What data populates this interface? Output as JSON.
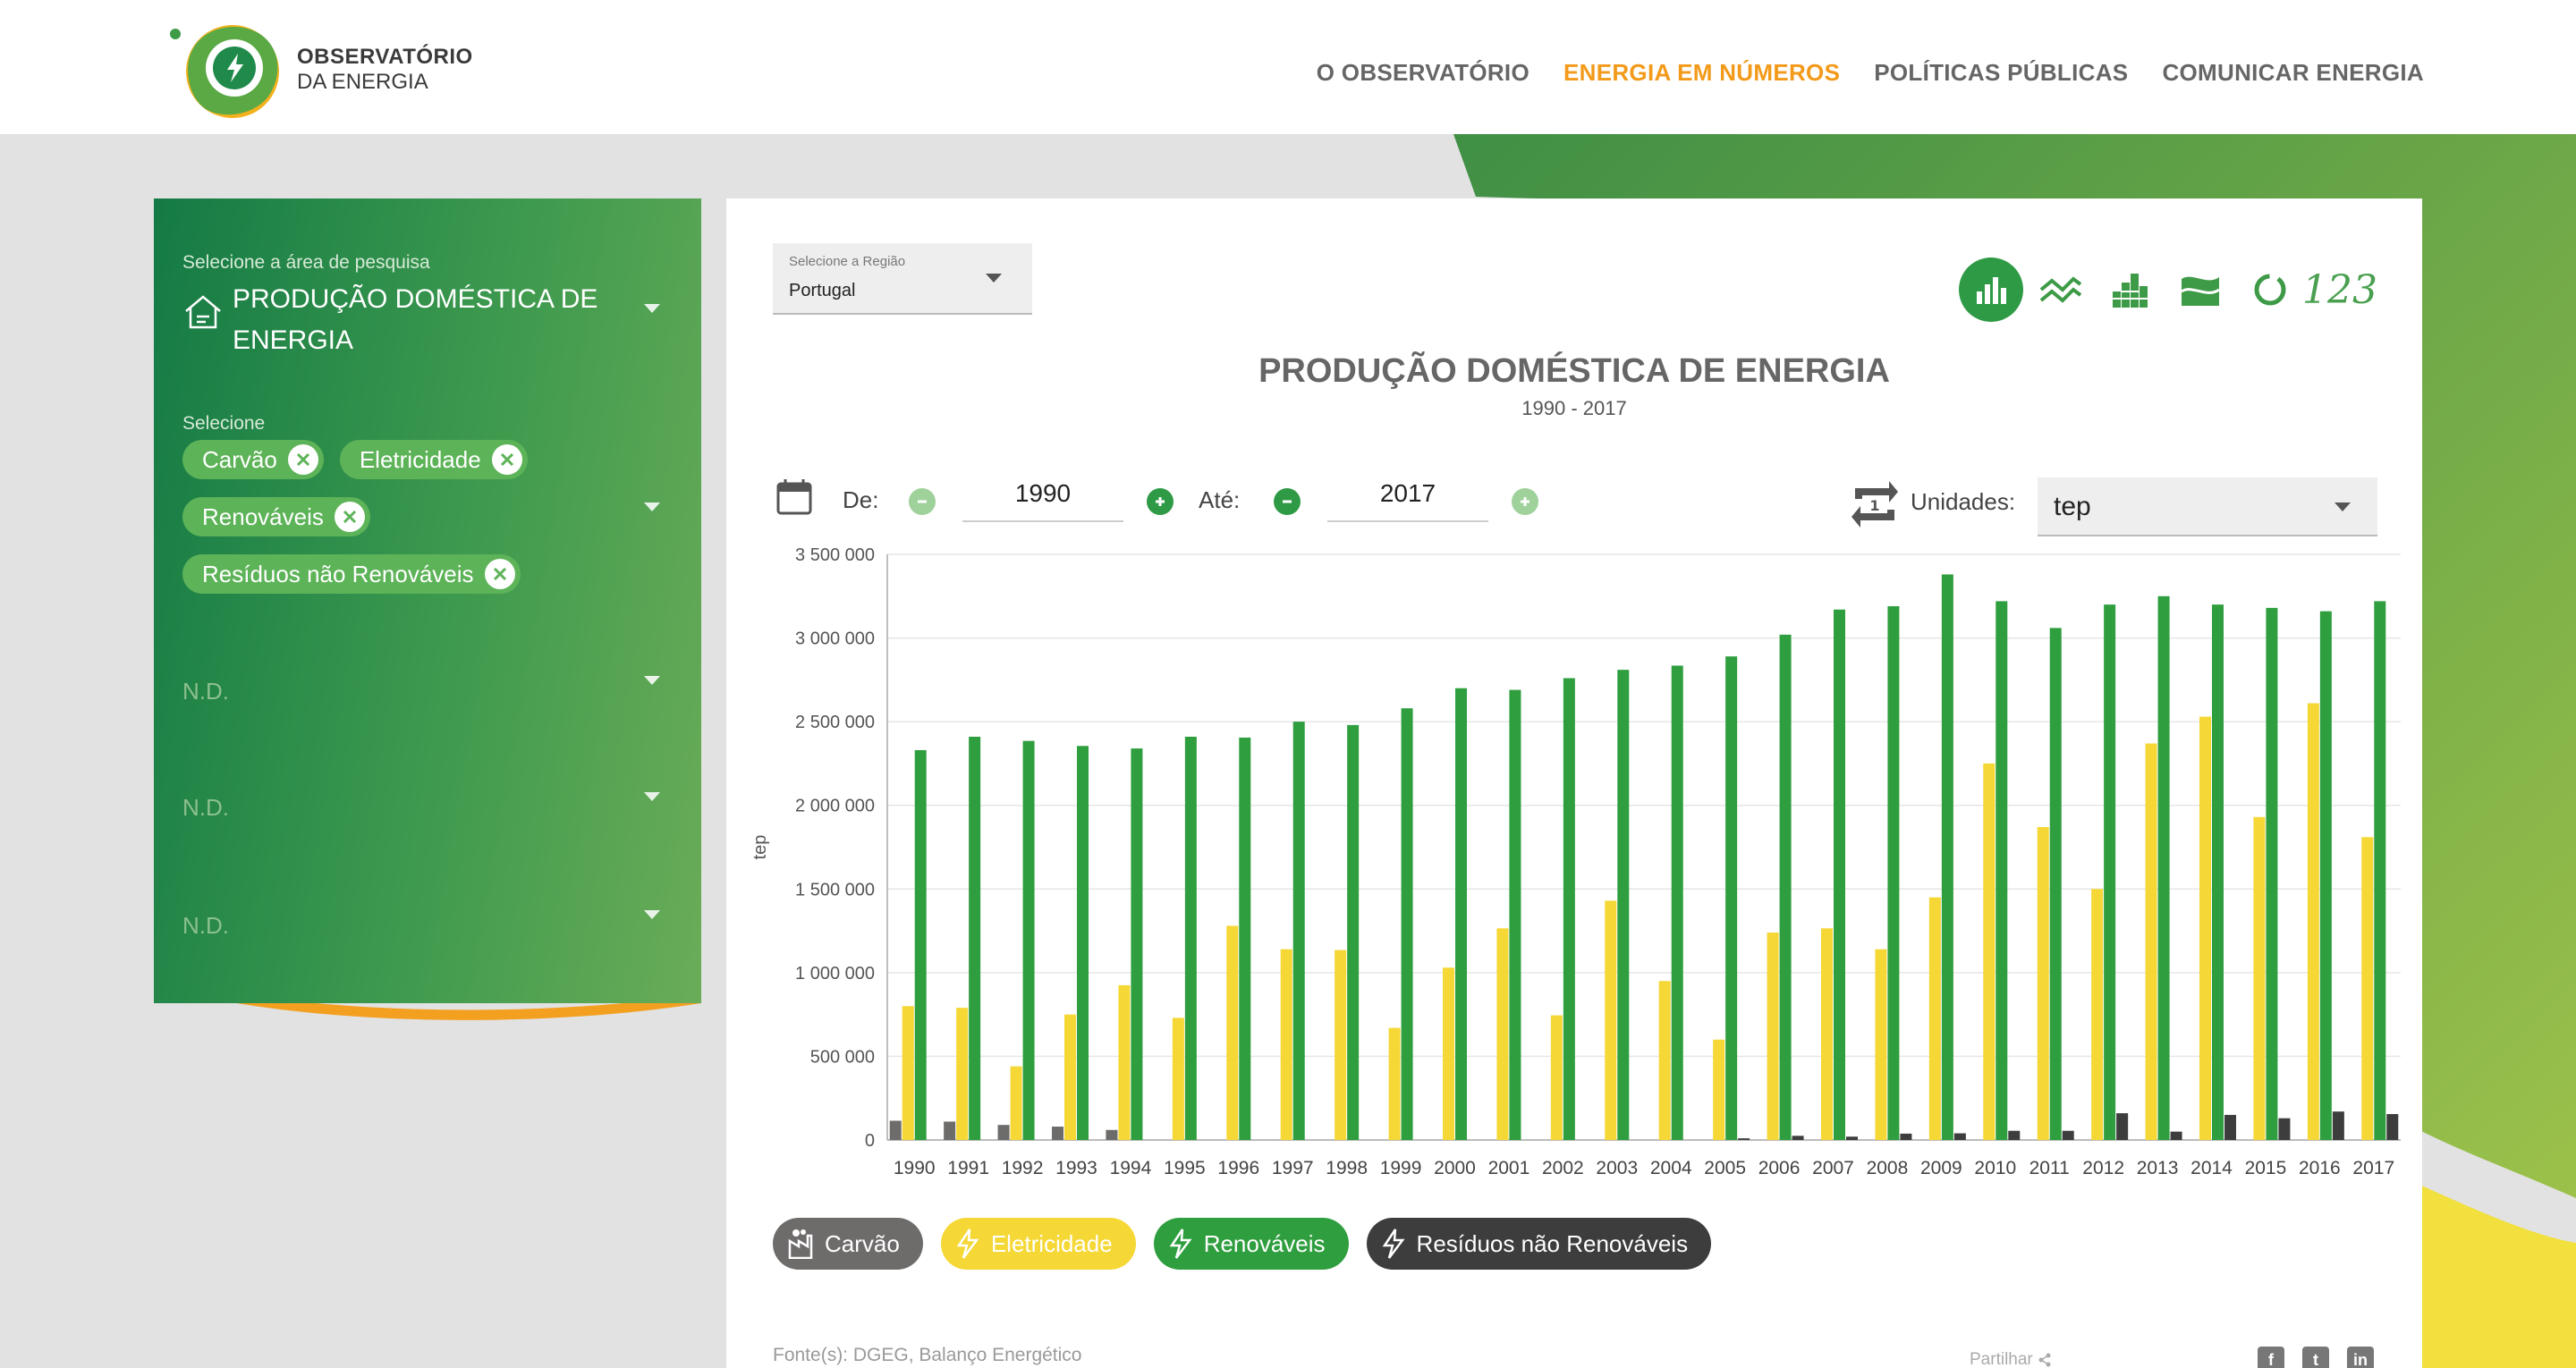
{
  "header": {
    "logo_line1": "OBSERVATÓRIO",
    "logo_line2": "DA ENERGIA",
    "nav": [
      {
        "label": "O OBSERVATÓRIO"
      },
      {
        "label": "ENERGIA EM NÚMEROS",
        "active": true
      },
      {
        "label": "POLÍTICAS PÚBLICAS"
      },
      {
        "label": "COMUNICAR ENERGIA"
      }
    ]
  },
  "sidebar": {
    "area_label": "Selecione a área de pesquisa",
    "area_value": "PRODUÇÃO DOMÉSTICA DE ENERGIA",
    "select_label": "Selecione",
    "chips": [
      "Carvão",
      "Eletricidade",
      "Renováveis",
      "Resíduos não Renováveis"
    ],
    "nd1": "N.D.",
    "nd2": "N.D.",
    "nd3": "N.D."
  },
  "panel": {
    "region_label": "Selecione a Região",
    "region_value": "Portugal",
    "title": "PRODUÇÃO DOMÉSTICA DE ENERGIA",
    "subtitle": "1990 - 2017",
    "from_label": "De:",
    "from_value": "1990",
    "to_label": "Até:",
    "to_value": "2017",
    "units_label": "Unidades:",
    "units_value": "tep",
    "chart_types": [
      "bar-chart-icon",
      "line-chart-icon",
      "stacked-bar-icon",
      "area-chart-icon",
      "donut-chart-icon",
      "table-numbers-icon"
    ],
    "chart_types_num_label": "123",
    "source": "Fonte(s): DGEG, Balanço Energético",
    "share": "Partilhar",
    "socials": [
      "f",
      "t",
      "in"
    ]
  },
  "colors": {
    "carvao": "#6e6b6b",
    "eletricidade": "#f5d735",
    "renovaveis": "#2e9e3e",
    "residuos": "#3d3d3d",
    "accent": "#f39a1a"
  },
  "chart_data": {
    "type": "bar",
    "ylabel": "tep",
    "ylim": [
      0,
      3500000
    ],
    "yticks": [
      "0",
      "500 000",
      "1 000 000",
      "1 500 000",
      "2 000 000",
      "2 500 000",
      "3 000 000",
      "3 500 000"
    ],
    "yticks_values": [
      0,
      500000,
      1000000,
      1500000,
      2000000,
      2500000,
      3000000,
      3500000
    ],
    "grid": true,
    "categories": [
      "1990",
      "1991",
      "1992",
      "1993",
      "1994",
      "1995",
      "1996",
      "1997",
      "1998",
      "1999",
      "2000",
      "2001",
      "2002",
      "2003",
      "2004",
      "2005",
      "2006",
      "2007",
      "2008",
      "2009",
      "2010",
      "2011",
      "2012",
      "2013",
      "2014",
      "2015",
      "2016",
      "2017"
    ],
    "series": [
      {
        "name": "Carvão",
        "color": "#6e6b6b",
        "values": [
          115000,
          110000,
          90000,
          80000,
          60000,
          0,
          0,
          0,
          0,
          0,
          0,
          0,
          0,
          0,
          0,
          0,
          0,
          0,
          0,
          0,
          0,
          0,
          0,
          0,
          0,
          0,
          0,
          0
        ]
      },
      {
        "name": "Eletricidade",
        "color": "#f5d735",
        "values": [
          800000,
          790000,
          440000,
          750000,
          925000,
          730000,
          1280000,
          1140000,
          1135000,
          670000,
          1030000,
          1265000,
          745000,
          1430000,
          950000,
          600000,
          1240000,
          1265000,
          1140000,
          1450000,
          2250000,
          1870000,
          1500000,
          2370000,
          2530000,
          1930000,
          2610000,
          1810000
        ]
      },
      {
        "name": "Renováveis",
        "color": "#2e9e3e",
        "values": [
          2330000,
          2410000,
          2385000,
          2355000,
          2340000,
          2410000,
          2405000,
          2500000,
          2480000,
          2580000,
          2700000,
          2690000,
          2760000,
          2810000,
          2835000,
          2890000,
          3020000,
          3170000,
          3190000,
          3380000,
          3220000,
          3060000,
          3200000,
          3250000,
          3200000,
          3180000,
          3160000,
          3220000
        ]
      },
      {
        "name": "Resíduos não Renováveis",
        "color": "#3d3d3d",
        "values": [
          0,
          0,
          0,
          0,
          0,
          0,
          0,
          0,
          0,
          0,
          0,
          0,
          0,
          0,
          0,
          10000,
          25000,
          20000,
          38000,
          40000,
          55000,
          55000,
          160000,
          50000,
          150000,
          130000,
          170000,
          155000
        ]
      }
    ]
  }
}
